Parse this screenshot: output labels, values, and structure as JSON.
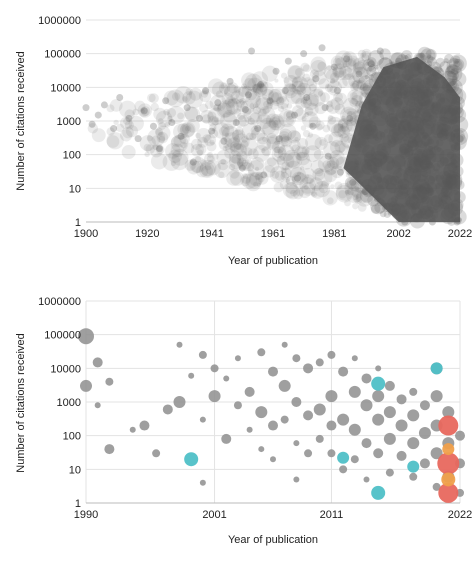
{
  "chart_data": [
    {
      "type": "scatter",
      "xlabel": "Year of publication",
      "ylabel": "Number of citations received",
      "xlim": [
        1900,
        2022
      ],
      "ylim": [
        1,
        1000000
      ],
      "y_scale": "log",
      "x_ticks": [
        1900,
        1920,
        1941,
        1961,
        1981,
        2002,
        2022
      ],
      "y_ticks": [
        1,
        10,
        100,
        1000,
        10000,
        100000,
        1000000
      ],
      "y_tick_labels": [
        "1",
        "10",
        "100",
        "1000",
        "10000",
        "100000",
        "1000000"
      ],
      "grid": "horizontal",
      "point_color": "#5a5a5a",
      "series": [
        {
          "points": [
            [
              1900,
              2500
            ],
            [
              1902,
              800
            ],
            [
              1904,
              1500
            ],
            [
              1906,
              3000
            ],
            [
              1909,
              600
            ],
            [
              1911,
              5000
            ],
            [
              1914,
              1200
            ],
            [
              1917,
              300
            ],
            [
              1919,
              2000
            ],
            [
              1922,
              700
            ],
            [
              1924,
              150
            ],
            [
              1926,
              4000
            ],
            [
              1928,
              900
            ],
            [
              1931,
              350
            ],
            [
              1933,
              2500
            ],
            [
              1935,
              60
            ],
            [
              1937,
              1200
            ],
            [
              1939,
              8000
            ],
            [
              1941,
              500
            ],
            [
              1943,
              3500
            ],
            [
              1945,
              250
            ],
            [
              1947,
              15000
            ],
            [
              1949,
              900
            ],
            [
              1951,
              40
            ],
            [
              1952,
              2200
            ],
            [
              1953,
              6000
            ],
            [
              1954,
              120000
            ],
            [
              1956,
              600
            ],
            [
              1957,
              12000
            ],
            [
              1958,
              25
            ],
            [
              1960,
              4000
            ],
            [
              1962,
              30000
            ],
            [
              1963,
              300
            ],
            [
              1965,
              8000
            ],
            [
              1966,
              60000
            ],
            [
              1968,
              1500
            ],
            [
              1969,
              20
            ],
            [
              1971,
              100000
            ],
            [
              1972,
              5000
            ],
            [
              1974,
              700
            ],
            [
              1975,
              18000
            ],
            [
              1977,
              150000
            ],
            [
              1978,
              2500
            ],
            [
              1979,
              90
            ],
            [
              1981,
              40000
            ],
            [
              1982,
              8000
            ],
            [
              1983,
              30
            ],
            [
              1985,
              70000
            ],
            [
              1986,
              1200
            ],
            [
              1987,
              15
            ],
            [
              1989,
              25000
            ],
            [
              1990,
              3000
            ],
            [
              1991,
              8
            ],
            [
              1993,
              50000
            ],
            [
              1994,
              600
            ],
            [
              1995,
              5
            ],
            [
              1996,
              120000
            ],
            [
              1997,
              9000
            ],
            [
              1998,
              3
            ],
            [
              1999,
              30000
            ],
            [
              2000,
              800
            ],
            [
              2001,
              2
            ],
            [
              2002,
              60000
            ],
            [
              2003,
              1500
            ],
            [
              2004,
              1
            ],
            [
              2005,
              20000
            ],
            [
              2006,
              200
            ],
            [
              2007,
              3
            ],
            [
              2008,
              40000
            ],
            [
              2009,
              100
            ],
            [
              2010,
              2
            ],
            [
              2011,
              15000
            ],
            [
              2012,
              50
            ],
            [
              2013,
              1
            ],
            [
              2014,
              9000
            ],
            [
              2015,
              20
            ],
            [
              2016,
              4000
            ],
            [
              2017,
              8
            ],
            [
              2018,
              2000
            ],
            [
              2019,
              3
            ],
            [
              2020,
              1000
            ],
            [
              2021,
              1
            ],
            [
              2022,
              300
            ]
          ]
        }
      ]
    },
    {
      "type": "scatter",
      "xlabel": "Year of publication",
      "ylabel": "Number of citations received",
      "xlim": [
        1990,
        2022
      ],
      "ylim": [
        1,
        1000000
      ],
      "y_scale": "log",
      "x_ticks": [
        1990,
        2001,
        2011,
        2022
      ],
      "y_ticks": [
        1,
        10,
        100,
        1000,
        10000,
        100000,
        1000000
      ],
      "y_tick_labels": [
        "1",
        "10",
        "100",
        "1000",
        "10000",
        "100000",
        "1000000"
      ],
      "grid": "both",
      "colors": {
        "default": "#8e8e8e",
        "teal": "#4fc0c7",
        "red": "#e8685e",
        "orange": "#f0a04b"
      },
      "series": [
        {
          "color_key": "default",
          "points": [
            [
              1990,
              3000,
              6
            ],
            [
              1990,
              90000,
              8
            ],
            [
              1991,
              15000,
              5
            ],
            [
              1991,
              800,
              3
            ],
            [
              1992,
              4000,
              4
            ],
            [
              1992,
              40,
              5
            ],
            [
              1994,
              150,
              3
            ],
            [
              1995,
              200,
              5
            ],
            [
              1996,
              30,
              4
            ],
            [
              1997,
              600,
              5
            ],
            [
              1998,
              50000,
              3
            ],
            [
              1998,
              1000,
              6
            ],
            [
              1999,
              6000,
              3
            ],
            [
              2000,
              25000,
              4
            ],
            [
              2000,
              300,
              3
            ],
            [
              2000,
              4,
              3
            ],
            [
              2001,
              1500,
              6
            ],
            [
              2001,
              10000,
              4
            ],
            [
              2002,
              5000,
              3
            ],
            [
              2002,
              80,
              5
            ],
            [
              2003,
              800,
              4
            ],
            [
              2003,
              20000,
              3
            ],
            [
              2004,
              2000,
              5
            ],
            [
              2004,
              150,
              3
            ],
            [
              2005,
              30000,
              4
            ],
            [
              2005,
              500,
              6
            ],
            [
              2005,
              40,
              3
            ],
            [
              2006,
              8000,
              5
            ],
            [
              2006,
              200,
              5
            ],
            [
              2006,
              20,
              3
            ],
            [
              2007,
              3000,
              6
            ],
            [
              2007,
              50000,
              3
            ],
            [
              2007,
              300,
              4
            ],
            [
              2008,
              20000,
              4
            ],
            [
              2008,
              1000,
              5
            ],
            [
              2008,
              60,
              3
            ],
            [
              2008,
              5,
              3
            ],
            [
              2009,
              10000,
              5
            ],
            [
              2009,
              400,
              5
            ],
            [
              2009,
              30,
              4
            ],
            [
              2010,
              15000,
              4
            ],
            [
              2010,
              600,
              6
            ],
            [
              2010,
              80,
              4
            ],
            [
              2011,
              25000,
              4
            ],
            [
              2011,
              1500,
              6
            ],
            [
              2011,
              200,
              5
            ],
            [
              2011,
              30,
              4
            ],
            [
              2012,
              8000,
              5
            ],
            [
              2012,
              300,
              6
            ],
            [
              2012,
              10,
              4
            ],
            [
              2013,
              20000,
              3
            ],
            [
              2013,
              2000,
              6
            ],
            [
              2013,
              150,
              6
            ],
            [
              2013,
              20,
              4
            ],
            [
              2014,
              5000,
              5
            ],
            [
              2014,
              800,
              6
            ],
            [
              2014,
              60,
              5
            ],
            [
              2014,
              5,
              3
            ],
            [
              2015,
              10000,
              3
            ],
            [
              2015,
              1500,
              6
            ],
            [
              2015,
              300,
              6
            ],
            [
              2015,
              30,
              5
            ],
            [
              2016,
              3000,
              5
            ],
            [
              2016,
              500,
              6
            ],
            [
              2016,
              80,
              6
            ],
            [
              2016,
              8,
              4
            ],
            [
              2017,
              1200,
              5
            ],
            [
              2017,
              200,
              6
            ],
            [
              2017,
              25,
              5
            ],
            [
              2018,
              2000,
              4
            ],
            [
              2018,
              400,
              6
            ],
            [
              2018,
              60,
              6
            ],
            [
              2018,
              6,
              4
            ],
            [
              2019,
              800,
              5
            ],
            [
              2019,
              120,
              6
            ],
            [
              2019,
              15,
              5
            ],
            [
              2020,
              10000,
              6
            ],
            [
              2020,
              1500,
              6
            ],
            [
              2020,
              200,
              6
            ],
            [
              2020,
              30,
              6
            ],
            [
              2020,
              3,
              4
            ],
            [
              2021,
              500,
              6
            ],
            [
              2021,
              60,
              6
            ],
            [
              2021,
              6,
              6
            ],
            [
              2022,
              100,
              5
            ],
            [
              2022,
              15,
              5
            ],
            [
              2022,
              2,
              4
            ]
          ]
        },
        {
          "color_key": "teal",
          "points": [
            [
              1999,
              20,
              7
            ],
            [
              2012,
              22,
              6
            ],
            [
              2015,
              3500,
              7
            ],
            [
              2015,
              2,
              7
            ],
            [
              2018,
              12,
              6
            ],
            [
              2020,
              10000,
              6
            ]
          ]
        },
        {
          "color_key": "red",
          "points": [
            [
              2021,
              200,
              10
            ],
            [
              2021,
              15,
              11
            ],
            [
              2021,
              2,
              10
            ]
          ]
        },
        {
          "color_key": "orange",
          "points": [
            [
              2021,
              5,
              7
            ],
            [
              2021,
              40,
              6
            ]
          ]
        }
      ]
    }
  ]
}
